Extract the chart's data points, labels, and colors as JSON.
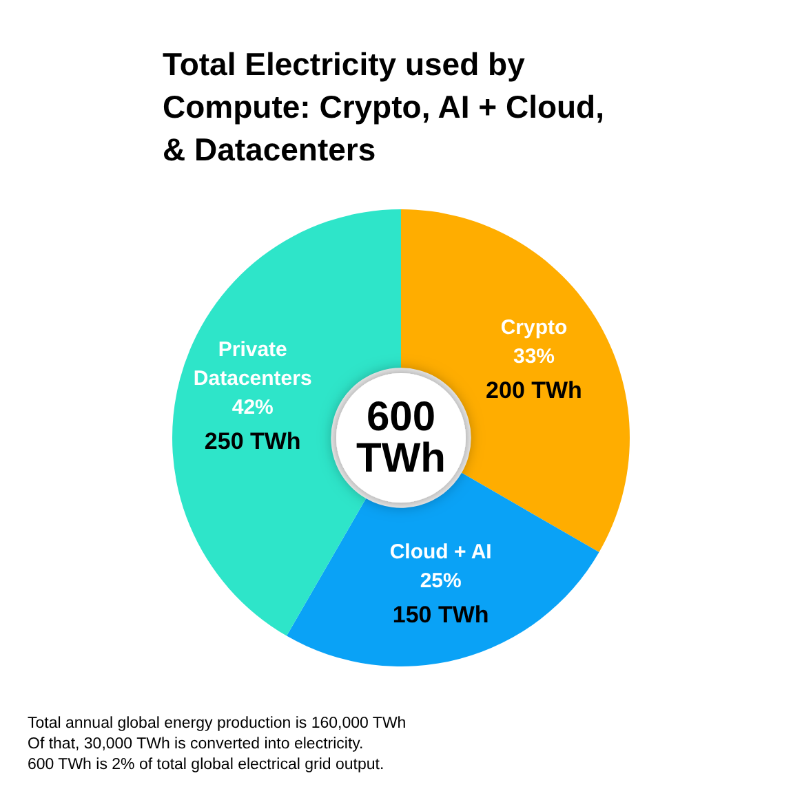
{
  "chart_data": {
    "type": "donut",
    "title": "Total Electricity used by\nCompute: Crypto, AI + Cloud,\n& Datacenters",
    "categories": [
      "Crypto",
      "Cloud + AI",
      "Private\nDatacenters"
    ],
    "values": [
      200,
      150,
      250
    ],
    "colors": [
      "#ffad00",
      "#0aa2f6",
      "#2ee5c9"
    ],
    "value_labels": [
      "33%\n200 TWh",
      "25%\n150 TWh",
      "42%\n250 TWh"
    ],
    "annotations": [
      "600\nTWh",
      "Total annual global energy production is 160,000 TWh\nOf that, 30,000 TWh is converted into electricity.\n600 TWh is 2% of total global electrical grid output."
    ]
  }
}
